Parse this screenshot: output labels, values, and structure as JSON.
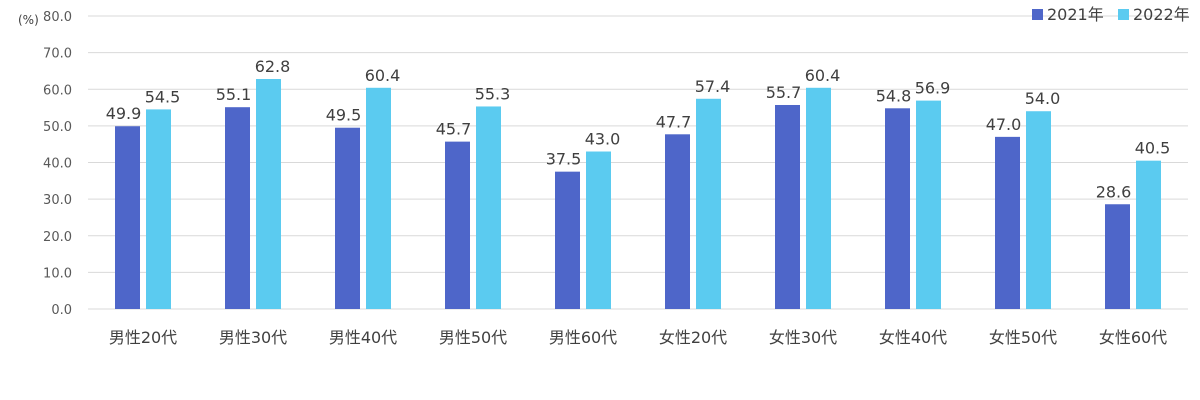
{
  "chart_data": {
    "type": "bar",
    "y_unit_label": "(%)",
    "categories": [
      "男性20代",
      "男性30代",
      "男性40代",
      "男性50代",
      "男性60代",
      "女性20代",
      "女性30代",
      "女性40代",
      "女性50代",
      "女性60代"
    ],
    "series": [
      {
        "name": "2021年",
        "color": "#4e66c9",
        "values": [
          49.9,
          55.1,
          49.5,
          45.7,
          37.5,
          47.7,
          55.7,
          54.8,
          47.0,
          28.6
        ]
      },
      {
        "name": "2022年",
        "color": "#5bcbf0",
        "values": [
          54.5,
          62.8,
          60.4,
          55.3,
          43.0,
          57.4,
          60.4,
          56.9,
          54.0,
          40.5
        ]
      }
    ],
    "ylim": [
      0,
      80
    ],
    "yticks": [
      "0.0",
      "10.0",
      "20.0",
      "30.0",
      "40.0",
      "50.0",
      "60.0",
      "70.0",
      "80.0"
    ],
    "grid": true,
    "legend": "top-right"
  }
}
